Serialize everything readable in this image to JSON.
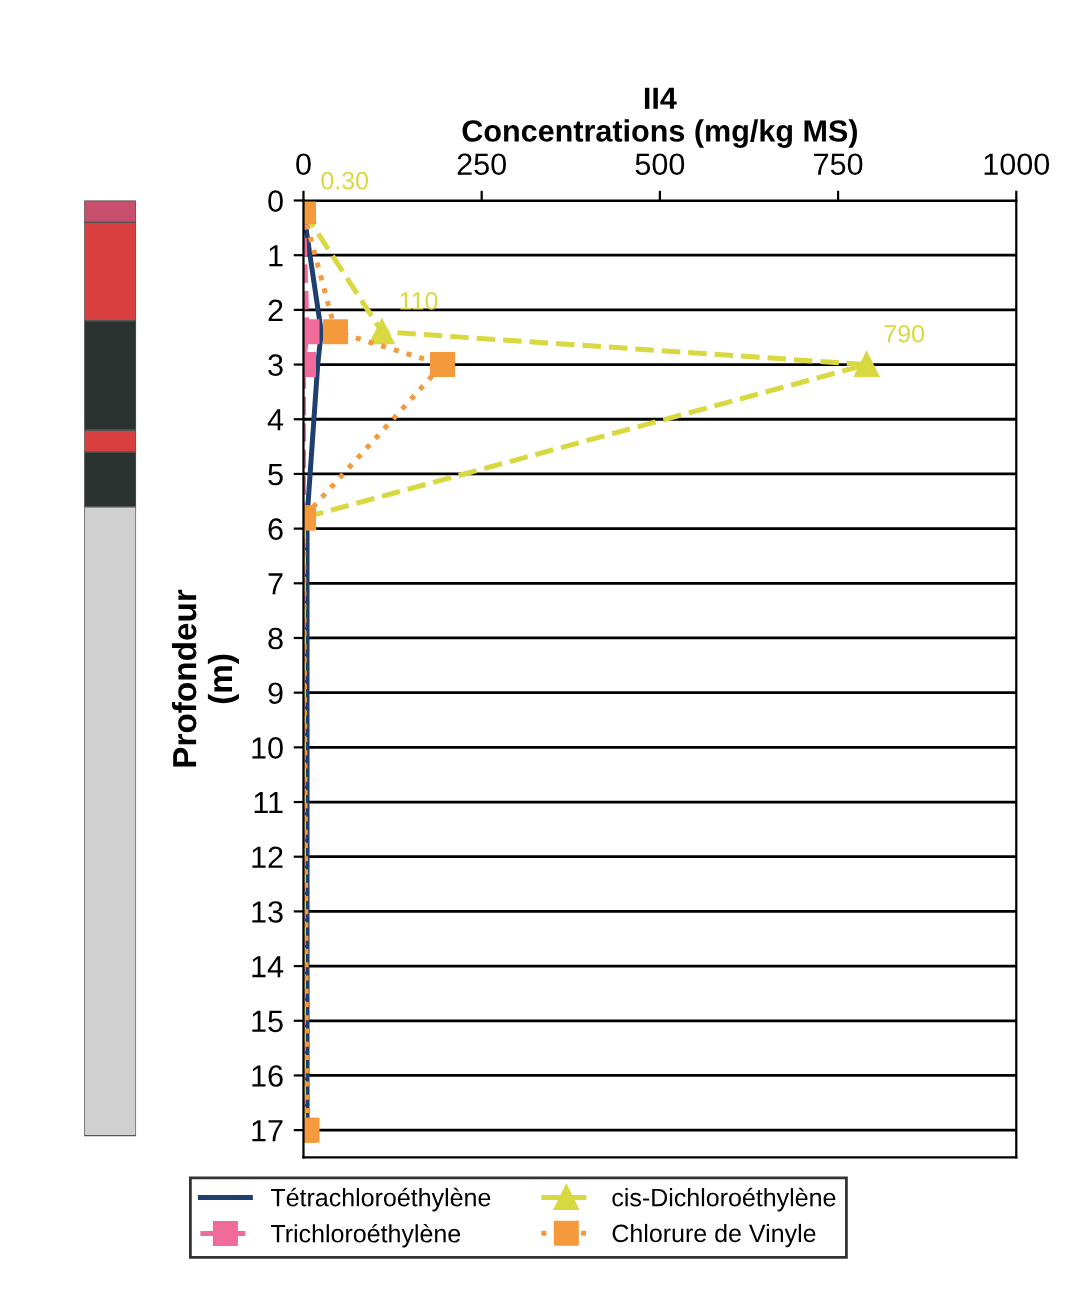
{
  "chart_data": {
    "type": "line",
    "orientation": "horizontal",
    "title": "II4",
    "xlabel": "Concentrations (mg/kg MS)",
    "ylabel": "Profondeur\n(m)",
    "xlim": [
      0,
      1000
    ],
    "xticks": [
      0,
      250,
      500,
      750,
      1000
    ],
    "ylim": [
      17.5,
      0
    ],
    "yticks": [
      0,
      1,
      2,
      3,
      4,
      5,
      6,
      7,
      8,
      9,
      10,
      11,
      12,
      13,
      14,
      15,
      16,
      17
    ],
    "grid": "y",
    "legend": "bottom",
    "series": [
      {
        "name": "Tétrachloroéthylène",
        "color": "#1f3f6e",
        "marker": "none",
        "line_style": "solid",
        "x": [
          0.2,
          2.4,
          3.0,
          5.8,
          17
        ],
        "values": [
          0,
          25,
          20,
          5,
          5
        ]
      },
      {
        "name": "Trichloroéthylène",
        "color": "#f06a9a",
        "marker": "square",
        "line_style": "dashed",
        "x": [
          0.2,
          2.4,
          3.0,
          5.8,
          17
        ],
        "values": [
          0,
          5,
          0,
          0,
          0
        ]
      },
      {
        "name": "cis-Dichloroéthylène",
        "color": "#d8d840",
        "marker": "triangle",
        "line_style": "dashed",
        "x": [
          0.2,
          2.4,
          3.0,
          5.8,
          17
        ],
        "values": [
          0.3,
          110,
          790,
          0,
          0
        ],
        "value_labels": [
          "0.30",
          "110",
          "790",
          null,
          null
        ]
      },
      {
        "name": "Chlorure de Vinyle",
        "color": "#f59a3c",
        "marker": "square",
        "line_style": "dotted",
        "x": [
          0.2,
          2.4,
          3.0,
          5.8,
          17
        ],
        "values": [
          0,
          45,
          195,
          0,
          5
        ]
      }
    ]
  }
}
